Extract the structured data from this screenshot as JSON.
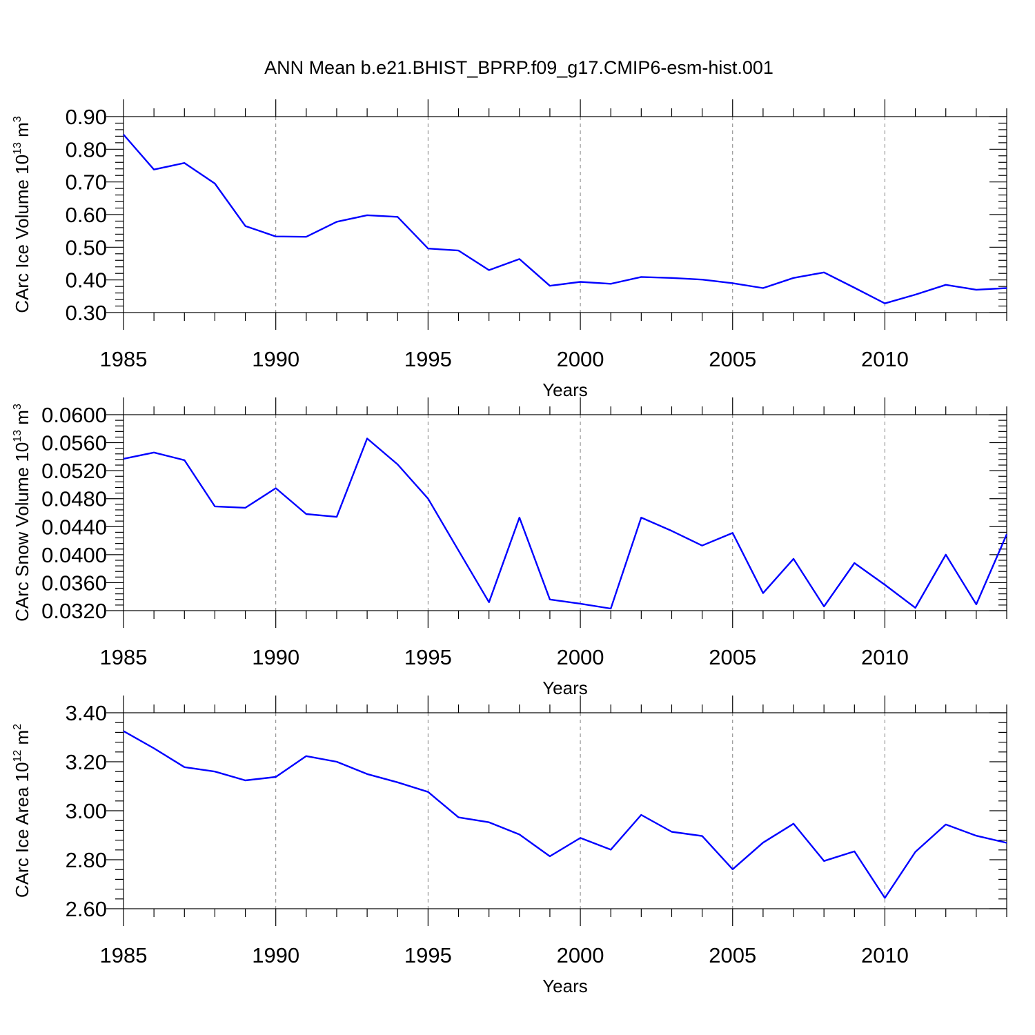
{
  "title": "ANN Mean b.e21.BHIST_BPRP.f09_g17.CMIP6-esm-hist.001",
  "line_color": "#0000ff",
  "chart_data": [
    {
      "type": "line",
      "ylabel": "CArc Ice Volume 10",
      "ylabel_exp": "13",
      "ylabel_unit": " m",
      "ylabel_unit_exp": "3",
      "xlabel": "Years",
      "xlim": [
        1985,
        2014
      ],
      "ylim": [
        0.3,
        0.9
      ],
      "yticks": [
        0.3,
        0.4,
        0.5,
        0.6,
        0.7,
        0.8,
        0.9
      ],
      "ytick_labels": [
        "0.30",
        "0.40",
        "0.50",
        "0.60",
        "0.70",
        "0.80",
        "0.90"
      ],
      "y_minor_step": 0.02,
      "xticks": [
        1985,
        1990,
        1995,
        2000,
        2005,
        2010
      ],
      "xtick_labels": [
        "1985",
        "1990",
        "1995",
        "2000",
        "2005",
        "2010"
      ],
      "x": [
        1985,
        1986,
        1987,
        1988,
        1989,
        1990,
        1991,
        1992,
        1993,
        1994,
        1995,
        1996,
        1997,
        1998,
        1999,
        2000,
        2001,
        2002,
        2003,
        2004,
        2005,
        2006,
        2007,
        2008,
        2009,
        2010,
        2011,
        2012,
        2013,
        2014
      ],
      "values": [
        0.845,
        0.738,
        0.758,
        0.695,
        0.565,
        0.533,
        0.532,
        0.578,
        0.598,
        0.593,
        0.496,
        0.49,
        0.43,
        0.464,
        0.382,
        0.394,
        0.388,
        0.409,
        0.406,
        0.401,
        0.39,
        0.375,
        0.406,
        0.423,
        0.376,
        0.328,
        0.355,
        0.385,
        0.37,
        0.375
      ]
    },
    {
      "type": "line",
      "ylabel": "CArc Snow Volume 10",
      "ylabel_exp": "13",
      "ylabel_unit": " m",
      "ylabel_unit_exp": "3",
      "xlabel": "Years",
      "xlim": [
        1985,
        2014
      ],
      "ylim": [
        0.032,
        0.06
      ],
      "yticks": [
        0.032,
        0.036,
        0.04,
        0.044,
        0.048,
        0.052,
        0.056,
        0.06
      ],
      "ytick_labels": [
        "0.0320",
        "0.0360",
        "0.0400",
        "0.0440",
        "0.0480",
        "0.0520",
        "0.0560",
        "0.0600"
      ],
      "y_minor_step": 0.0008,
      "xticks": [
        1985,
        1990,
        1995,
        2000,
        2005,
        2010
      ],
      "xtick_labels": [
        "1985",
        "1990",
        "1995",
        "2000",
        "2005",
        "2010"
      ],
      "x": [
        1985,
        1986,
        1987,
        1988,
        1989,
        1990,
        1991,
        1992,
        1993,
        1994,
        1995,
        1996,
        1997,
        1998,
        1999,
        2000,
        2001,
        2002,
        2003,
        2004,
        2005,
        2006,
        2007,
        2008,
        2009,
        2010,
        2011,
        2012,
        2013,
        2014
      ],
      "values": [
        0.0537,
        0.0546,
        0.0535,
        0.0469,
        0.0467,
        0.0495,
        0.0458,
        0.0454,
        0.0566,
        0.0529,
        0.048,
        0.0406,
        0.0332,
        0.0453,
        0.0336,
        0.033,
        0.0323,
        0.0453,
        0.0434,
        0.0413,
        0.0431,
        0.0345,
        0.0394,
        0.0326,
        0.0388,
        0.0357,
        0.0324,
        0.04,
        0.0329,
        0.0429
      ]
    },
    {
      "type": "line",
      "ylabel": "CArc Ice Area 10",
      "ylabel_exp": "12",
      "ylabel_unit": " m",
      "ylabel_unit_exp": "2",
      "xlabel": "Years",
      "xlim": [
        1985,
        2014
      ],
      "ylim": [
        2.6,
        3.4
      ],
      "yticks": [
        2.6,
        2.8,
        3.0,
        3.2,
        3.4
      ],
      "ytick_labels": [
        "2.60",
        "2.80",
        "3.00",
        "3.20",
        "3.40"
      ],
      "y_minor_step": 0.04,
      "xticks": [
        1985,
        1990,
        1995,
        2000,
        2005,
        2010
      ],
      "xtick_labels": [
        "1985",
        "1990",
        "1995",
        "2000",
        "2005",
        "2010"
      ],
      "x": [
        1985,
        1986,
        1987,
        1988,
        1989,
        1990,
        1991,
        1992,
        1993,
        1994,
        1995,
        1996,
        1997,
        1998,
        1999,
        2000,
        2001,
        2002,
        2003,
        2004,
        2005,
        2006,
        2007,
        2008,
        2009,
        2010,
        2011,
        2012,
        2013,
        2014
      ],
      "values": [
        3.325,
        3.255,
        3.178,
        3.16,
        3.124,
        3.138,
        3.223,
        3.2,
        3.15,
        3.116,
        3.077,
        2.973,
        2.953,
        2.903,
        2.814,
        2.889,
        2.841,
        2.983,
        2.914,
        2.897,
        2.761,
        2.87,
        2.947,
        2.795,
        2.834,
        2.644,
        2.832,
        2.944,
        2.898,
        2.869
      ]
    }
  ]
}
